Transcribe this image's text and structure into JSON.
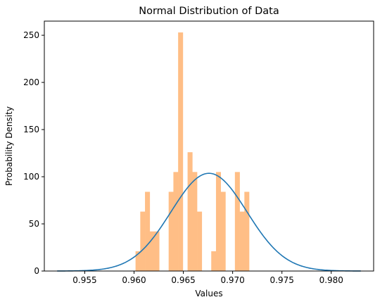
{
  "chart_data": {
    "type": "bar",
    "title": "Normal Distribution of Data",
    "xlabel": "Values",
    "ylabel": "Probability Density",
    "xlim": [
      0.9509,
      0.9843
    ],
    "ylim": [
      0,
      265
    ],
    "x_ticks": [
      0.955,
      0.96,
      0.965,
      0.97,
      0.975,
      0.98
    ],
    "x_tick_labels": [
      "0.955",
      "0.960",
      "0.965",
      "0.970",
      "0.975",
      "0.980"
    ],
    "y_ticks": [
      0,
      50,
      100,
      150,
      200,
      250
    ],
    "y_tick_labels": [
      "0",
      "50",
      "100",
      "150",
      "200",
      "250"
    ],
    "grid": false,
    "legend": false,
    "histogram": {
      "color": "#ffbe86",
      "bin_edges": [
        0.96015,
        0.96063,
        0.96111,
        0.96159,
        0.96207,
        0.96255,
        0.96303,
        0.96351,
        0.96399,
        0.96447,
        0.96495,
        0.96543,
        0.96591,
        0.96639,
        0.96687,
        0.96735,
        0.96783,
        0.96831,
        0.96879,
        0.96927,
        0.96975,
        0.97023,
        0.97071,
        0.97119,
        0.97167,
        0.97215,
        0.97263,
        0.97311,
        0.97359,
        0.97407,
        0.97455
      ],
      "values": [
        21,
        63,
        84,
        42,
        42,
        0,
        0,
        84,
        105,
        253,
        0,
        126,
        105,
        63,
        0,
        0,
        21,
        105,
        84,
        0,
        0,
        105,
        63,
        84,
        0,
        0,
        0,
        0,
        0,
        0
      ]
    },
    "pdf_curve": {
      "color": "#1f77b4",
      "mean": 0.9676,
      "std": 0.00385,
      "x_range": [
        0.9522,
        0.983
      ]
    }
  }
}
